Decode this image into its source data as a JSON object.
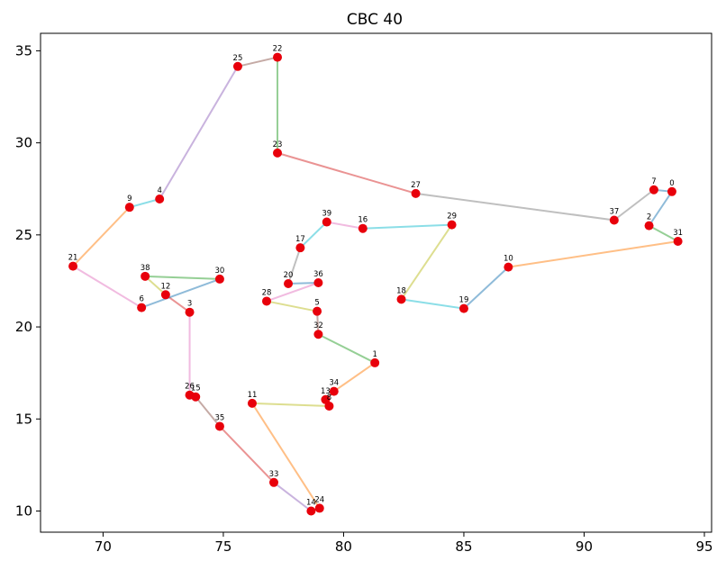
{
  "chart_data": {
    "type": "scatter",
    "title": "CBC 40",
    "xlabel": "",
    "ylabel": "",
    "xlim": [
      67.4,
      95.3
    ],
    "ylim": [
      8.85,
      35.95
    ],
    "xticks": [
      70,
      75,
      80,
      85,
      90,
      95
    ],
    "yticks": [
      10,
      15,
      20,
      25,
      30,
      35
    ],
    "grid": false,
    "marker_color": "#e8000b",
    "points": [
      {
        "id": "0",
        "x": 93.65,
        "y": 27.35
      },
      {
        "id": "1",
        "x": 81.3,
        "y": 18.05
      },
      {
        "id": "2",
        "x": 92.7,
        "y": 25.5
      },
      {
        "id": "3",
        "x": 73.6,
        "y": 20.8
      },
      {
        "id": "4",
        "x": 72.35,
        "y": 26.95
      },
      {
        "id": "5",
        "x": 78.9,
        "y": 20.85
      },
      {
        "id": "6",
        "x": 71.6,
        "y": 21.05
      },
      {
        "id": "7",
        "x": 92.9,
        "y": 27.45
      },
      {
        "id": "8",
        "x": 79.4,
        "y": 15.7
      },
      {
        "id": "9",
        "x": 71.1,
        "y": 26.5
      },
      {
        "id": "10",
        "x": 86.85,
        "y": 23.25
      },
      {
        "id": "11",
        "x": 76.2,
        "y": 15.85
      },
      {
        "id": "12",
        "x": 72.6,
        "y": 21.75
      },
      {
        "id": "13",
        "x": 79.25,
        "y": 16.05
      },
      {
        "id": "14",
        "x": 78.65,
        "y": 10.0
      },
      {
        "id": "15",
        "x": 73.85,
        "y": 16.2
      },
      {
        "id": "16",
        "x": 80.8,
        "y": 25.35
      },
      {
        "id": "17",
        "x": 78.2,
        "y": 24.3
      },
      {
        "id": "18",
        "x": 82.4,
        "y": 21.5
      },
      {
        "id": "19",
        "x": 85.0,
        "y": 21.0
      },
      {
        "id": "20",
        "x": 77.7,
        "y": 22.35
      },
      {
        "id": "21",
        "x": 68.75,
        "y": 23.3
      },
      {
        "id": "22",
        "x": 77.25,
        "y": 34.65
      },
      {
        "id": "23",
        "x": 77.25,
        "y": 29.45
      },
      {
        "id": "24",
        "x": 79.0,
        "y": 10.15
      },
      {
        "id": "25",
        "x": 75.6,
        "y": 34.15
      },
      {
        "id": "26",
        "x": 73.6,
        "y": 16.3
      },
      {
        "id": "27",
        "x": 83.0,
        "y": 27.25
      },
      {
        "id": "28",
        "x": 76.8,
        "y": 21.4
      },
      {
        "id": "29",
        "x": 84.5,
        "y": 25.55
      },
      {
        "id": "30",
        "x": 74.85,
        "y": 22.6
      },
      {
        "id": "31",
        "x": 93.9,
        "y": 24.65
      },
      {
        "id": "32",
        "x": 78.95,
        "y": 19.6
      },
      {
        "id": "33",
        "x": 77.1,
        "y": 11.55
      },
      {
        "id": "34",
        "x": 79.6,
        "y": 16.5
      },
      {
        "id": "35",
        "x": 74.85,
        "y": 14.6
      },
      {
        "id": "36",
        "x": 78.95,
        "y": 22.4
      },
      {
        "id": "37",
        "x": 91.25,
        "y": 25.8
      },
      {
        "id": "38",
        "x": 71.75,
        "y": 22.75
      },
      {
        "id": "39",
        "x": 79.3,
        "y": 25.7
      }
    ],
    "segments": [
      {
        "from": "0",
        "to": "2",
        "color": "#1f77b4"
      },
      {
        "from": "2",
        "to": "31",
        "color": "#2ca02c"
      },
      {
        "from": "31",
        "to": "10",
        "color": "#ff7f0e"
      },
      {
        "from": "10",
        "to": "19",
        "color": "#1f77b4"
      },
      {
        "from": "19",
        "to": "18",
        "color": "#17becf"
      },
      {
        "from": "18",
        "to": "29",
        "color": "#bcbd22"
      },
      {
        "from": "29",
        "to": "16",
        "color": "#17becf"
      },
      {
        "from": "16",
        "to": "39",
        "color": "#e377c2"
      },
      {
        "from": "39",
        "to": "17",
        "color": "#17becf"
      },
      {
        "from": "17",
        "to": "20",
        "color": "#7f7f7f"
      },
      {
        "from": "20",
        "to": "36",
        "color": "#1f77b4"
      },
      {
        "from": "36",
        "to": "28",
        "color": "#e377c2"
      },
      {
        "from": "28",
        "to": "5",
        "color": "#bcbd22"
      },
      {
        "from": "5",
        "to": "32",
        "color": "#8c564b"
      },
      {
        "from": "32",
        "to": "1",
        "color": "#2ca02c"
      },
      {
        "from": "1",
        "to": "34",
        "color": "#ff7f0e"
      },
      {
        "from": "34",
        "to": "13",
        "color": "#d62728"
      },
      {
        "from": "13",
        "to": "8",
        "color": "#9467bd"
      },
      {
        "from": "8",
        "to": "11",
        "color": "#bcbd22"
      },
      {
        "from": "11",
        "to": "24",
        "color": "#ff7f0e"
      },
      {
        "from": "24",
        "to": "14",
        "color": "#d62728"
      },
      {
        "from": "14",
        "to": "33",
        "color": "#9467bd"
      },
      {
        "from": "33",
        "to": "35",
        "color": "#d62728"
      },
      {
        "from": "35",
        "to": "15",
        "color": "#8c564b"
      },
      {
        "from": "15",
        "to": "26",
        "color": "#e377c2"
      },
      {
        "from": "26",
        "to": "3",
        "color": "#e377c2"
      },
      {
        "from": "3",
        "to": "12",
        "color": "#d62728"
      },
      {
        "from": "12",
        "to": "38",
        "color": "#bcbd22"
      },
      {
        "from": "38",
        "to": "30",
        "color": "#2ca02c"
      },
      {
        "from": "30",
        "to": "6",
        "color": "#1f77b4"
      },
      {
        "from": "6",
        "to": "21",
        "color": "#e377c2"
      },
      {
        "from": "21",
        "to": "9",
        "color": "#ff7f0e"
      },
      {
        "from": "9",
        "to": "4",
        "color": "#17becf"
      },
      {
        "from": "4",
        "to": "25",
        "color": "#9467bd"
      },
      {
        "from": "25",
        "to": "22",
        "color": "#8c564b"
      },
      {
        "from": "22",
        "to": "23",
        "color": "#2ca02c"
      },
      {
        "from": "23",
        "to": "27",
        "color": "#d62728"
      },
      {
        "from": "27",
        "to": "37",
        "color": "#7f7f7f"
      },
      {
        "from": "37",
        "to": "7",
        "color": "#7f7f7f"
      },
      {
        "from": "7",
        "to": "0",
        "color": "#1f77b4"
      }
    ]
  }
}
